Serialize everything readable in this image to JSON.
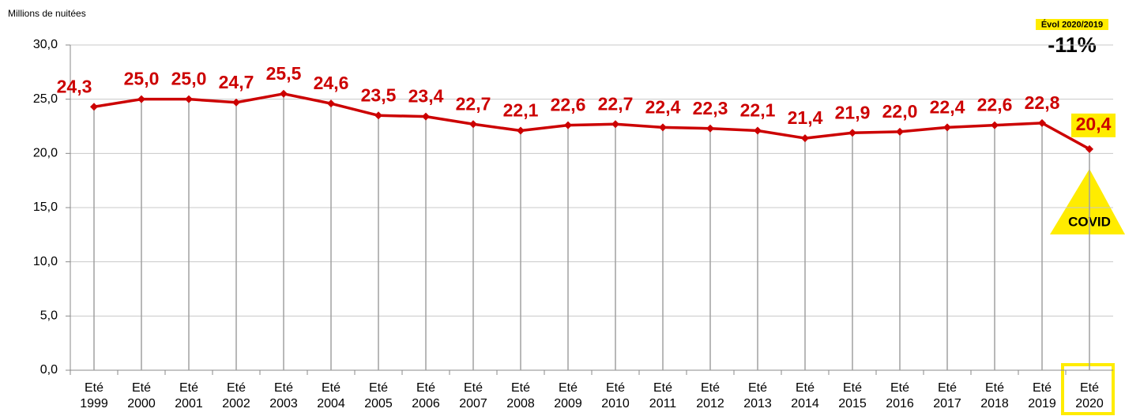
{
  "chart_data": {
    "type": "line",
    "y_axis_label": "Millions de nuitées",
    "categories": [
      "Eté 1999",
      "Eté 2000",
      "Eté 2001",
      "Eté 2002",
      "Eté 2003",
      "Eté 2004",
      "Eté 2005",
      "Eté 2006",
      "Eté 2007",
      "Eté 2008",
      "Eté 2009",
      "Eté 2010",
      "Eté 2011",
      "Eté 2012",
      "Eté 2013",
      "Eté 2014",
      "Eté 2015",
      "Eté 2016",
      "Eté 2017",
      "Eté 2018",
      "Eté 2019",
      "Eté 2020"
    ],
    "series": [
      {
        "name": "Millions de nuitées",
        "color": "#cc0000",
        "values": [
          24.3,
          25.0,
          25.0,
          24.7,
          25.5,
          24.6,
          23.5,
          23.4,
          22.7,
          22.1,
          22.6,
          22.7,
          22.4,
          22.3,
          22.1,
          21.4,
          21.9,
          22.0,
          22.4,
          22.6,
          22.8,
          20.4
        ],
        "value_labels": [
          "24,3",
          "25,0",
          "25,0",
          "24,7",
          "25,5",
          "24,6",
          "23,5",
          "23,4",
          "22,7",
          "22,1",
          "22,6",
          "22,7",
          "22,4",
          "22,3",
          "22,1",
          "21,4",
          "21,9",
          "22,0",
          "22,4",
          "22,6",
          "22,8",
          "20,4"
        ]
      }
    ],
    "ylim": [
      0,
      30
    ],
    "yticks": [
      {
        "value": 0,
        "label": "0,0"
      },
      {
        "value": 5,
        "label": "5,0"
      },
      {
        "value": 10,
        "label": "10,0"
      },
      {
        "value": 15,
        "label": "15,0"
      },
      {
        "value": 20,
        "label": "20,0"
      },
      {
        "value": 25,
        "label": "25,0"
      },
      {
        "value": 30,
        "label": "30,0"
      }
    ],
    "grid": true,
    "annotations": {
      "evol_label": "Évol 2020/2019",
      "evol_value": "-11%",
      "event": "COVID"
    }
  }
}
